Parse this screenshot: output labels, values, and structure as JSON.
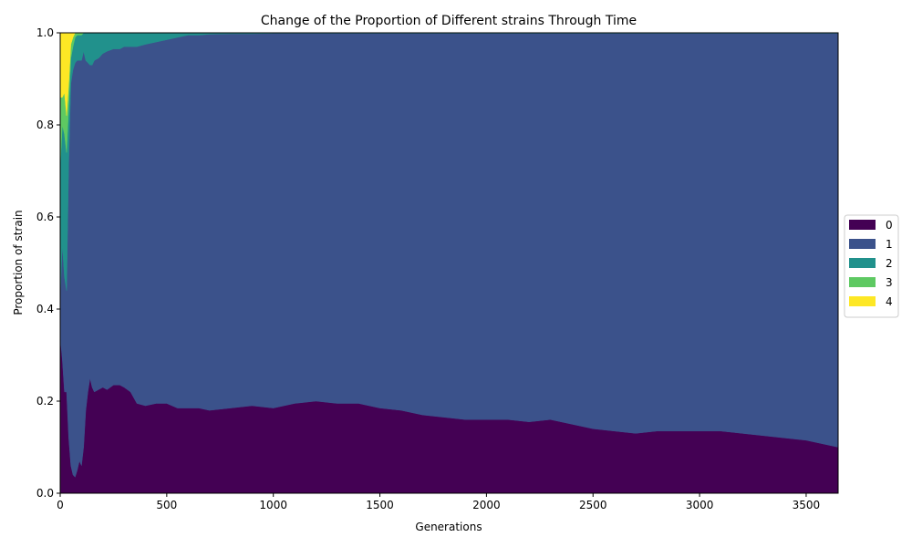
{
  "chart_data": {
    "type": "area",
    "stacked": true,
    "title": "Change of the Proportion of Different strains Through Time",
    "xlabel": "Generations",
    "ylabel": "Proportion of strain",
    "xlim": [
      0,
      3650
    ],
    "ylim": [
      0,
      1.0
    ],
    "x_ticks": [
      0,
      500,
      1000,
      1500,
      2000,
      2500,
      3000,
      3500
    ],
    "y_ticks": [
      0.0,
      0.2,
      0.4,
      0.6,
      0.8,
      1.0
    ],
    "x_tick_labels": [
      "0",
      "500",
      "1000",
      "1500",
      "2000",
      "2500",
      "3000",
      "3500"
    ],
    "y_tick_labels": [
      "0.0",
      "0.2",
      "0.4",
      "0.6",
      "0.8",
      "1.0"
    ],
    "grid": false,
    "legend_position": "right-center",
    "x": [
      0,
      10,
      20,
      30,
      40,
      50,
      60,
      70,
      80,
      90,
      100,
      110,
      120,
      130,
      140,
      150,
      160,
      180,
      200,
      220,
      250,
      280,
      300,
      330,
      360,
      400,
      450,
      500,
      550,
      600,
      650,
      700,
      800,
      900,
      1000,
      1100,
      1200,
      1300,
      1400,
      1500,
      1600,
      1700,
      1800,
      1900,
      2000,
      2100,
      2200,
      2300,
      2400,
      2500,
      2600,
      2700,
      2800,
      2900,
      3000,
      3100,
      3200,
      3300,
      3400,
      3500,
      3600,
      3650
    ],
    "series": [
      {
        "name": "0",
        "color": "#440154",
        "values": [
          0.34,
          0.29,
          0.22,
          0.22,
          0.12,
          0.06,
          0.04,
          0.035,
          0.05,
          0.07,
          0.06,
          0.1,
          0.18,
          0.22,
          0.25,
          0.23,
          0.22,
          0.225,
          0.23,
          0.225,
          0.235,
          0.235,
          0.23,
          0.22,
          0.195,
          0.19,
          0.195,
          0.195,
          0.185,
          0.185,
          0.185,
          0.18,
          0.185,
          0.19,
          0.185,
          0.195,
          0.2,
          0.195,
          0.195,
          0.185,
          0.18,
          0.17,
          0.165,
          0.16,
          0.16,
          0.16,
          0.155,
          0.16,
          0.15,
          0.14,
          0.135,
          0.13,
          0.135,
          0.135,
          0.135,
          0.135,
          0.13,
          0.125,
          0.12,
          0.115,
          0.105,
          0.1
        ]
      },
      {
        "name": "1",
        "color": "#3b528b",
        "values": [
          0.09,
          0.25,
          0.25,
          0.22,
          0.6,
          0.83,
          0.88,
          0.9,
          0.89,
          0.87,
          0.88,
          0.86,
          0.76,
          0.715,
          0.68,
          0.7,
          0.72,
          0.72,
          0.725,
          0.735,
          0.73,
          0.73,
          0.74,
          0.75,
          0.775,
          0.785,
          0.785,
          0.79,
          0.805,
          0.81,
          0.81,
          0.817,
          0.813,
          0.808,
          0.814,
          0.804,
          0.799,
          0.804,
          0.804,
          0.814,
          0.819,
          0.829,
          0.834,
          0.839,
          0.839,
          0.839,
          0.844,
          0.839,
          0.849,
          0.859,
          0.864,
          0.869,
          0.864,
          0.864,
          0.864,
          0.864,
          0.869,
          0.874,
          0.879,
          0.884,
          0.894,
          0.899
        ]
      },
      {
        "name": "2",
        "color": "#21918c",
        "values": [
          0.28,
          0.26,
          0.31,
          0.3,
          0.12,
          0.055,
          0.05,
          0.055,
          0.055,
          0.055,
          0.055,
          0.04,
          0.06,
          0.065,
          0.07,
          0.07,
          0.06,
          0.055,
          0.045,
          0.04,
          0.035,
          0.035,
          0.03,
          0.03,
          0.03,
          0.025,
          0.02,
          0.015,
          0.01,
          0.005,
          0.005,
          0.003,
          0.002,
          0.002,
          0.001,
          0.001,
          0.001,
          0.001,
          0.001,
          0.001,
          0.001,
          0.001,
          0.001,
          0.001,
          0.001,
          0.001,
          0.001,
          0.001,
          0.001,
          0.001,
          0.001,
          0.001,
          0.001,
          0.001,
          0.001,
          0.001,
          0.001,
          0.001,
          0.001,
          0.001,
          0.001,
          0.001
        ]
      },
      {
        "name": "3",
        "color": "#5ec962",
        "values": [
          0.15,
          0.06,
          0.09,
          0.08,
          0.05,
          0.03,
          0.02,
          0.01,
          0.005,
          0.005,
          0.005,
          0,
          0,
          0,
          0,
          0,
          0,
          0,
          0,
          0,
          0,
          0,
          0,
          0,
          0,
          0,
          0,
          0,
          0,
          0,
          0,
          0,
          0,
          0,
          0,
          0,
          0,
          0,
          0,
          0,
          0,
          0,
          0,
          0,
          0,
          0,
          0,
          0,
          0,
          0,
          0,
          0,
          0,
          0,
          0,
          0,
          0,
          0,
          0,
          0,
          0,
          0
        ]
      },
      {
        "name": "4",
        "color": "#fde725",
        "values": [
          0.14,
          0.14,
          0.13,
          0.18,
          0.11,
          0.025,
          0.01,
          0,
          0,
          0,
          0,
          0,
          0,
          0,
          0,
          0,
          0,
          0,
          0,
          0,
          0,
          0,
          0,
          0,
          0,
          0,
          0,
          0,
          0,
          0,
          0,
          0,
          0,
          0,
          0,
          0,
          0,
          0,
          0,
          0,
          0,
          0,
          0,
          0,
          0,
          0,
          0,
          0,
          0,
          0,
          0,
          0,
          0,
          0,
          0,
          0,
          0,
          0,
          0,
          0,
          0,
          0
        ]
      }
    ]
  }
}
